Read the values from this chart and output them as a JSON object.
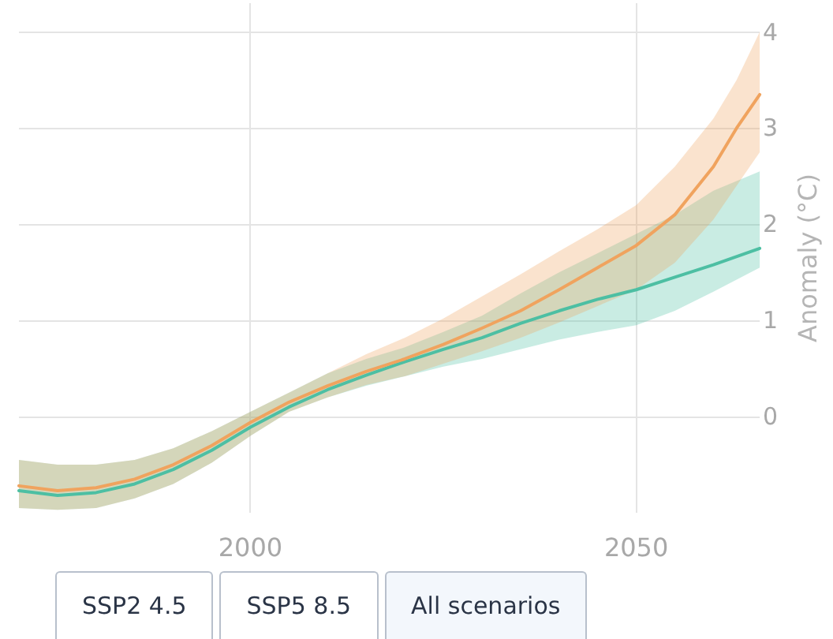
{
  "chart_data": {
    "type": "line",
    "ylabel": "Anomaly (°C)",
    "xlim": [
      1970,
      2066
    ],
    "xticks": [
      2000,
      2050
    ],
    "ylim": [
      -1,
      4.3
    ],
    "yticks": [
      0,
      1,
      2,
      3,
      4
    ],
    "grid": true,
    "marker": "none",
    "line_style": "solid",
    "annotations": [
      "SSP2 4.5",
      "SSP5 8.5",
      "All scenarios"
    ],
    "series": [
      {
        "color": "#4dbfa3",
        "x": [
          1970,
          1975,
          1980,
          1985,
          1990,
          1995,
          2000,
          2005,
          2010,
          2015,
          2020,
          2025,
          2030,
          2035,
          2040,
          2045,
          2050,
          2055,
          2060,
          2066
        ],
        "values": [
          -0.77,
          -0.82,
          -0.79,
          -0.7,
          -0.55,
          -0.35,
          -0.11,
          0.1,
          0.28,
          0.43,
          0.57,
          0.7,
          0.82,
          0.97,
          1.1,
          1.22,
          1.32,
          1.45,
          1.58,
          1.75
        ],
        "lower": [
          -0.95,
          -0.97,
          -0.95,
          -0.85,
          -0.7,
          -0.48,
          -0.2,
          0.05,
          0.2,
          0.32,
          0.42,
          0.52,
          0.6,
          0.7,
          0.8,
          0.88,
          0.95,
          1.1,
          1.3,
          1.55
        ],
        "upper": [
          -0.45,
          -0.5,
          -0.5,
          -0.45,
          -0.33,
          -0.15,
          0.05,
          0.25,
          0.45,
          0.6,
          0.72,
          0.88,
          1.05,
          1.28,
          1.5,
          1.7,
          1.9,
          2.1,
          2.35,
          2.55
        ]
      },
      {
        "color": "#f0a35e",
        "x": [
          1970,
          1975,
          1980,
          1985,
          1990,
          1995,
          2000,
          2005,
          2010,
          2015,
          2020,
          2025,
          2030,
          2035,
          2040,
          2045,
          2050,
          2055,
          2060,
          2063,
          2066
        ],
        "values": [
          -0.72,
          -0.77,
          -0.74,
          -0.65,
          -0.5,
          -0.3,
          -0.06,
          0.15,
          0.32,
          0.47,
          0.6,
          0.75,
          0.92,
          1.1,
          1.32,
          1.55,
          1.78,
          2.1,
          2.6,
          3.0,
          3.35
        ],
        "lower": [
          -0.95,
          -0.97,
          -0.95,
          -0.85,
          -0.7,
          -0.48,
          -0.2,
          0.05,
          0.2,
          0.33,
          0.42,
          0.55,
          0.68,
          0.82,
          0.98,
          1.15,
          1.32,
          1.6,
          2.05,
          2.4,
          2.75
        ],
        "upper": [
          -0.45,
          -0.5,
          -0.5,
          -0.45,
          -0.33,
          -0.15,
          0.05,
          0.25,
          0.45,
          0.65,
          0.82,
          1.02,
          1.25,
          1.48,
          1.72,
          1.95,
          2.2,
          2.6,
          3.1,
          3.5,
          4.0
        ]
      }
    ]
  }
}
